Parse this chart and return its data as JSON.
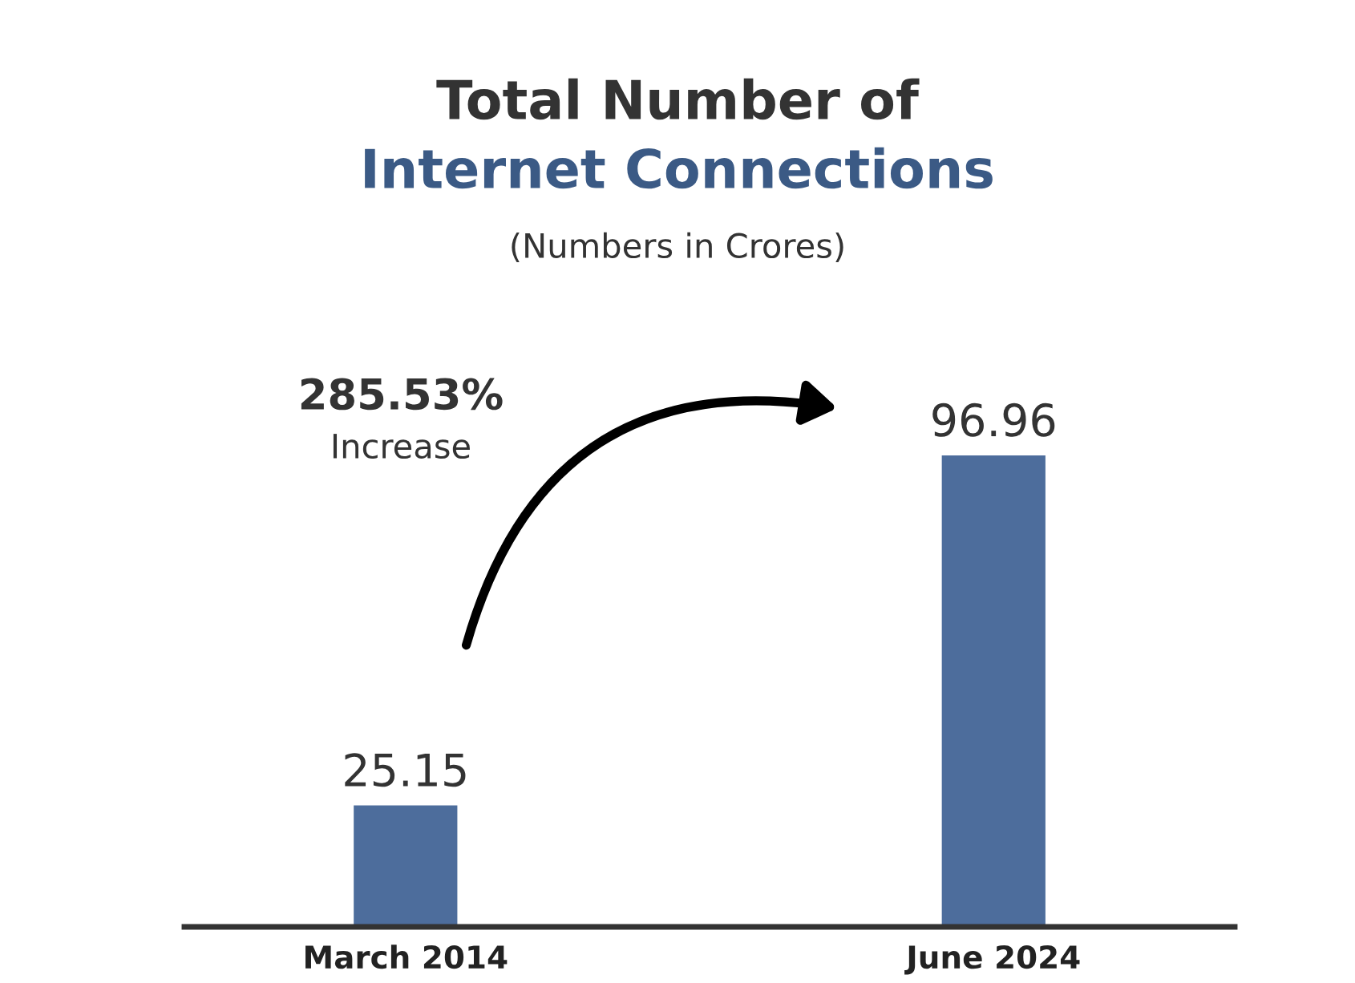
{
  "chart_data": {
    "type": "bar",
    "title": "Total Number of",
    "subtitle": "Internet Connections",
    "categories": [
      "March 2014",
      "June 2024"
    ],
    "values": [
      25.15,
      96.96
    ],
    "color": "#4d6d9c",
    "data_labels": true,
    "grid": false,
    "legend": false,
    "annotations": [
      "(Numbers in Crores)",
      "285.53%",
      "Increase"
    ]
  }
}
